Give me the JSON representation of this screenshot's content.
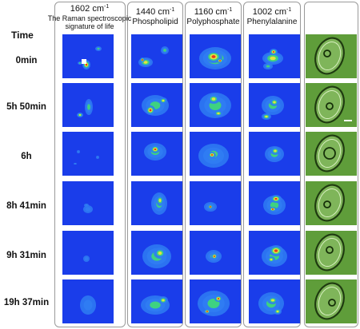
{
  "header": {
    "time_label": "Time"
  },
  "columns": [
    {
      "id": "c1602",
      "wavenumber": "1602",
      "unit": "cm",
      "exponent": "-1",
      "name": "The Raman spectroscopic signature of life"
    },
    {
      "id": "c1440",
      "wavenumber": "1440",
      "unit": "cm",
      "exponent": "-1",
      "name": "Phospholipid"
    },
    {
      "id": "c1160",
      "wavenumber": "1160",
      "unit": "cm",
      "exponent": "-1",
      "name": "Polyphosphate"
    },
    {
      "id": "c1002",
      "wavenumber": "1002",
      "unit": "cm",
      "exponent": "-1",
      "name": "Phenylalanine"
    }
  ],
  "rows": [
    {
      "time": "0min"
    },
    {
      "time": "5h 50min"
    },
    {
      "time": "6h"
    },
    {
      "time": "8h 41min"
    },
    {
      "time": "9h 31min"
    },
    {
      "time": "19h 37min"
    }
  ],
  "colors": {
    "map_background": "#1a3dea",
    "map_low": "#2f7cf2",
    "map_mid": "#3fd77a",
    "map_high": "#f0e23a",
    "map_peak": "#e8321c",
    "micrograph_bg": "#5f9d3a"
  }
}
